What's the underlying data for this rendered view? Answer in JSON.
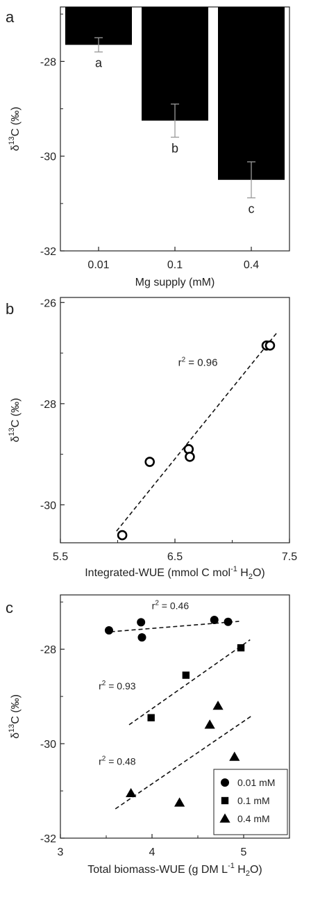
{
  "chart_data": [
    {
      "panel": "a",
      "type": "bar",
      "ylabel_main": "δ",
      "ylabel_sup": "13",
      "ylabel_rest": "C (‰)",
      "xlabel": "Mg supply (mM)",
      "categories": [
        "0.01",
        "0.1",
        "0.4"
      ],
      "values": [
        -27.65,
        -29.25,
        -30.5
      ],
      "errors": [
        0.15,
        0.35,
        0.38
      ],
      "letters": [
        "a",
        "b",
        "c"
      ],
      "ylim": [
        -32,
        -26.85
      ],
      "yticks": [
        -28,
        -30,
        -32
      ],
      "yticks_minor": [
        -27,
        -29,
        -31
      ],
      "ytick_labels": [
        "-28",
        "-30",
        "-32"
      ],
      "bar_color": "#000000",
      "error_color": "#999999"
    },
    {
      "panel": "b",
      "type": "scatter",
      "ylabel_main": "δ",
      "ylabel_sup": "13",
      "ylabel_rest": "C (‰)",
      "xlabel_pre": "Integrated-WUE (mmol C mol",
      "xlabel_sup": "-1",
      "xlabel_mid": " H",
      "xlabel_sub": "2",
      "xlabel_post": "O)",
      "xlim": [
        5.5,
        7.5
      ],
      "ylim": [
        -30.75,
        -25.9
      ],
      "xticks": [
        5.5,
        6.5,
        7.5
      ],
      "xtick_labels": [
        "5.5",
        "6.5",
        "7.5"
      ],
      "xticks_minor": [
        6.0,
        7.0
      ],
      "yticks": [
        -26,
        -28,
        -30
      ],
      "ytick_labels": [
        "-26",
        "-28",
        "-30"
      ],
      "yticks_minor": [
        -27,
        -29
      ],
      "points": [
        {
          "x": 6.04,
          "y": -30.6
        },
        {
          "x": 6.28,
          "y": -29.15
        },
        {
          "x": 6.62,
          "y": -28.9
        },
        {
          "x": 6.63,
          "y": -29.05
        },
        {
          "x": 7.3,
          "y": -26.85
        },
        {
          "x": 7.33,
          "y": -26.85
        }
      ],
      "fit": {
        "x1": 5.99,
        "y1": -30.52,
        "x2": 7.4,
        "y2": -26.57
      },
      "r2_pre": "r",
      "r2_sup": "2",
      "r2_post": " = 0.96",
      "r2_pos": {
        "x": 6.7,
        "y": -27.25
      }
    },
    {
      "panel": "c",
      "type": "scatter",
      "ylabel_main": "δ",
      "ylabel_sup": "13",
      "ylabel_rest": "C (‰)",
      "xlabel_pre": "Total biomass-WUE (g DM L",
      "xlabel_sup": "-1",
      "xlabel_mid": " H",
      "xlabel_sub": "2",
      "xlabel_post": "O)",
      "xlim": [
        3,
        5.5
      ],
      "ylim": [
        -32,
        -26.85
      ],
      "xticks": [
        3,
        4,
        5
      ],
      "xtick_labels": [
        "3",
        "4",
        "5"
      ],
      "xticks_minor": [
        3.5,
        4.5
      ],
      "yticks": [
        -28,
        -30,
        -32
      ],
      "ytick_labels": [
        "-28",
        "-30",
        "-32"
      ],
      "yticks_minor": [
        -27,
        -29,
        -31
      ],
      "series": [
        {
          "name": "0.01 mM",
          "marker": "circle",
          "points": [
            {
              "x": 3.53,
              "y": -27.6
            },
            {
              "x": 3.88,
              "y": -27.43
            },
            {
              "x": 3.89,
              "y": -27.75
            },
            {
              "x": 4.68,
              "y": -27.38
            },
            {
              "x": 4.83,
              "y": -27.42
            }
          ],
          "fit": {
            "x1": 3.55,
            "y1": -27.63,
            "x2": 4.95,
            "y2": -27.41
          },
          "r2_post": " = 0.46",
          "r2_pos": {
            "x": 4.2,
            "y": -27.15
          }
        },
        {
          "name": "0.1 mM",
          "marker": "square",
          "points": [
            {
              "x": 3.99,
              "y": -29.45
            },
            {
              "x": 4.37,
              "y": -28.55
            },
            {
              "x": 4.97,
              "y": -27.97
            }
          ],
          "fit": {
            "x1": 3.75,
            "y1": -29.6,
            "x2": 5.07,
            "y2": -27.8
          },
          "r2_post": " = 0.93",
          "r2_pos": {
            "x": 3.62,
            "y": -28.85
          }
        },
        {
          "name": "0.4 mM",
          "marker": "triangle",
          "points": [
            {
              "x": 3.77,
              "y": -31.05
            },
            {
              "x": 4.3,
              "y": -31.25
            },
            {
              "x": 4.63,
              "y": -29.6
            },
            {
              "x": 4.72,
              "y": -29.2
            },
            {
              "x": 4.9,
              "y": -30.28
            }
          ],
          "fit": {
            "x1": 3.6,
            "y1": -31.38,
            "x2": 5.08,
            "y2": -29.42
          },
          "r2_post": " = 0.48",
          "r2_pos": {
            "x": 3.62,
            "y": -30.45
          }
        }
      ],
      "r2_pre": "r",
      "r2_sup": "2",
      "legend_placement": "bottom-right"
    }
  ],
  "panel_letters": [
    "a",
    "b",
    "c"
  ]
}
